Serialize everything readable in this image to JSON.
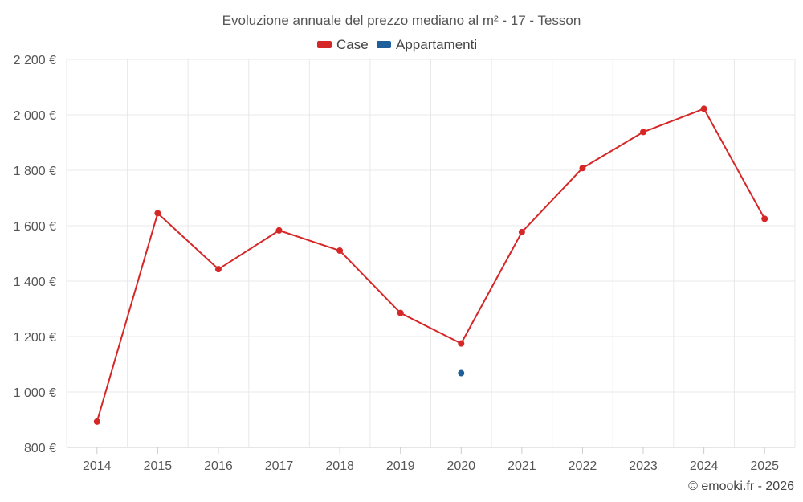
{
  "chart_data": {
    "type": "line",
    "title": "Evoluzione annuale del prezzo mediano al m² - 17 - Tesson",
    "categories": [
      "2014",
      "2015",
      "2016",
      "2017",
      "2018",
      "2019",
      "2020",
      "2021",
      "2022",
      "2023",
      "2024",
      "2025"
    ],
    "ylim": [
      800,
      2200
    ],
    "y_ticks": [
      800,
      1000,
      1200,
      1400,
      1600,
      1800,
      2000,
      2200
    ],
    "y_tick_labels": [
      "800 €",
      "1 000 €",
      "1 200 €",
      "1 400 €",
      "1 600 €",
      "1 800 €",
      "2 000 €",
      "2 200 €"
    ],
    "grid": true,
    "legend_position": "top-center",
    "series": [
      {
        "name": "Case",
        "color": "#d62728",
        "values": [
          893,
          1645,
          1443,
          1583,
          1510,
          1285,
          1175,
          1577,
          1808,
          1938,
          2022,
          1625
        ]
      },
      {
        "name": "Appartamenti",
        "color": "#1f5f99",
        "values": [
          null,
          null,
          null,
          null,
          null,
          null,
          1068,
          null,
          null,
          null,
          null,
          null
        ]
      }
    ],
    "credit": "© emooki.fr - 2026"
  }
}
